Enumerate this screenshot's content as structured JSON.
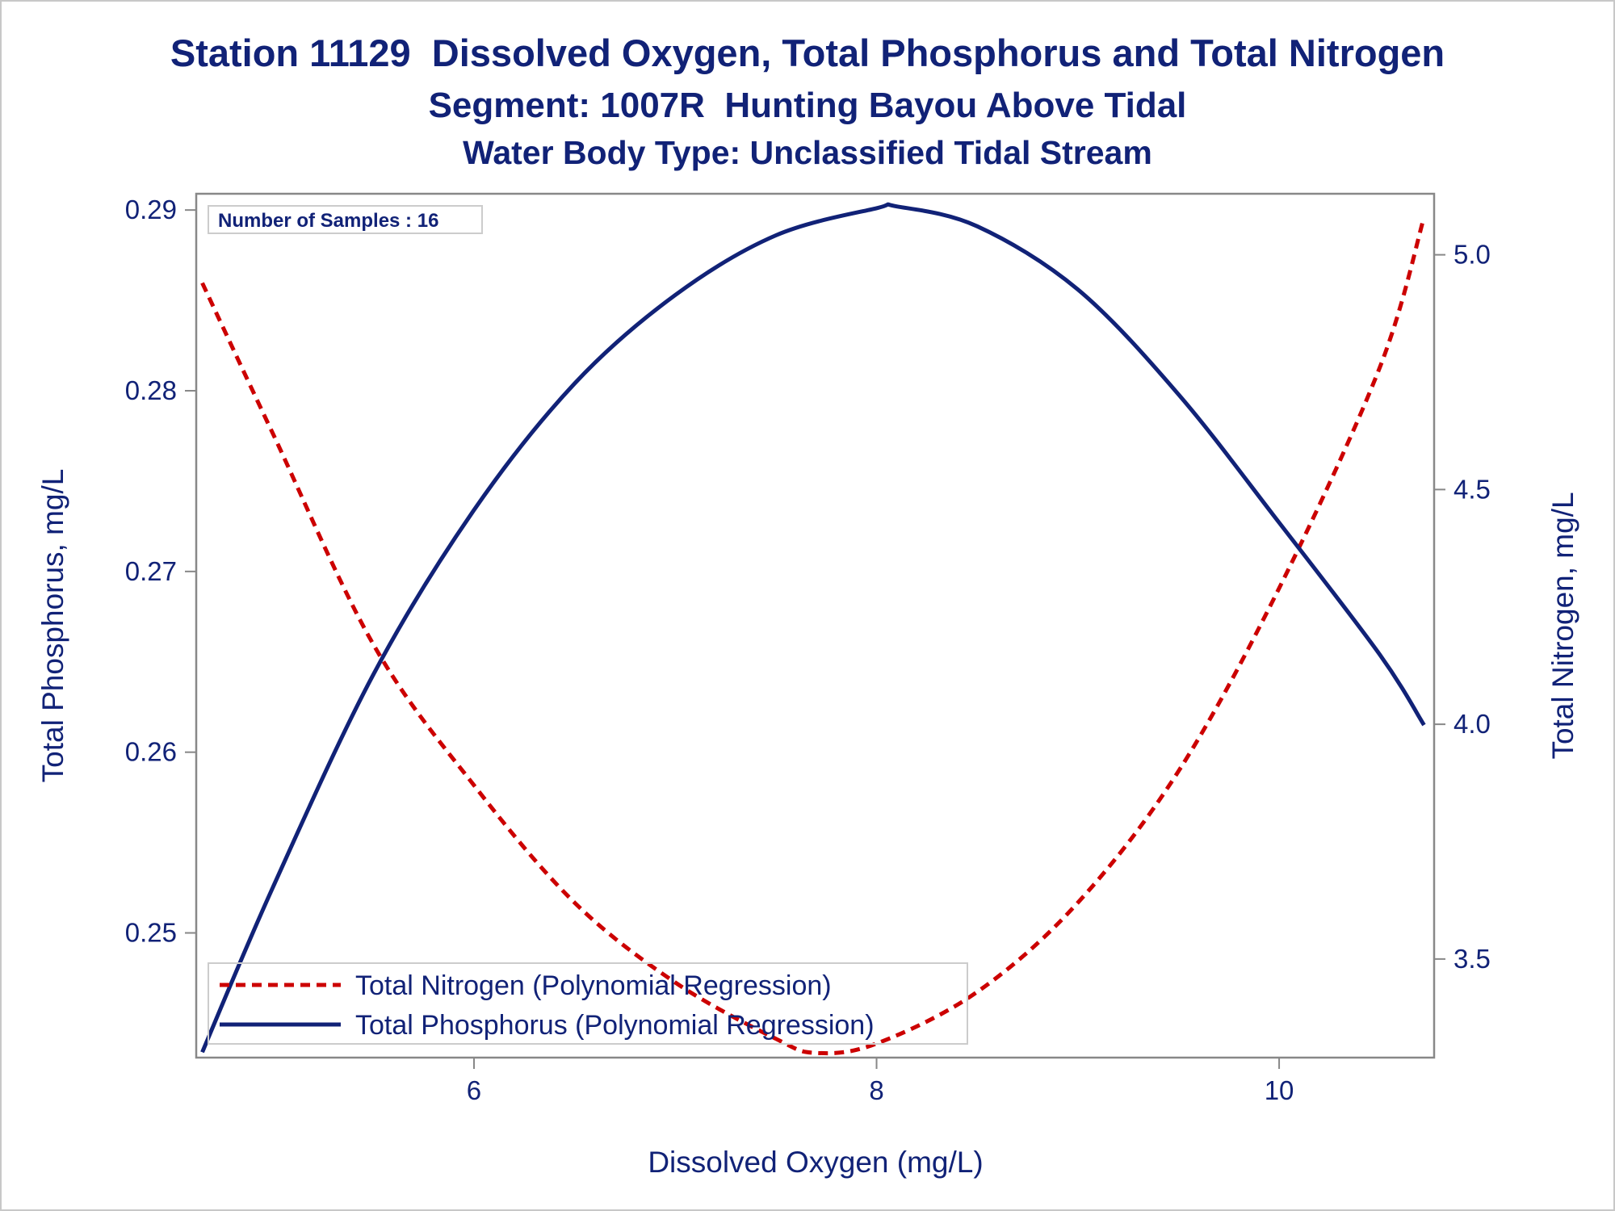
{
  "chart_data": {
    "type": "line",
    "title": "Station 11129  Dissolved Oxygen, Total Phosphorus and Total Nitrogen",
    "subtitle": "Segment: 1007R  Hunting Bayou Above Tidal",
    "subtitle2": "Water Body Type: Unclassified Tidal Stream",
    "xlabel": "Dissolved Oxygen (mg/L)",
    "ylabel_left": "Total Phosphorus, mg/L",
    "ylabel_right": "Total Nitrogen, mg/L",
    "xlim": [
      4.62,
      10.77
    ],
    "ylim_left": [
      0.2431,
      0.2909
    ],
    "ylim_right": [
      3.29,
      5.13
    ],
    "x_ticks": [
      6,
      8,
      10
    ],
    "x_tick_labels": [
      "6",
      "8",
      "10"
    ],
    "y_left_ticks": [
      0.25,
      0.26,
      0.27,
      0.28,
      0.29
    ],
    "y_left_tick_labels": [
      "0.25",
      "0.26",
      "0.27",
      "0.28",
      "0.29"
    ],
    "y_right_ticks": [
      3.5,
      4.0,
      4.5,
      5.0
    ],
    "y_right_tick_labels": [
      "3.5",
      "4.0",
      "4.5",
      "5.0"
    ],
    "inset_text": "Number of Samples : 16",
    "legend_position": "bottom-left",
    "series": [
      {
        "name": "Total Nitrogen (Polynomial Regression)",
        "axis": "right",
        "style": "dashed",
        "color": "#cc0000",
        "x": [
          4.65,
          5.0,
          5.5,
          6.0,
          6.5,
          7.0,
          7.5,
          7.7,
          8.0,
          8.5,
          9.0,
          9.5,
          10.0,
          10.5,
          10.72
        ],
        "y": [
          4.94,
          4.62,
          4.17,
          3.87,
          3.62,
          3.45,
          3.33,
          3.3,
          3.32,
          3.43,
          3.62,
          3.9,
          4.29,
          4.76,
          5.08
        ]
      },
      {
        "name": "Total Phosphorus (Polynomial Regression)",
        "axis": "left",
        "style": "solid",
        "color": "#112277",
        "x": [
          4.65,
          5.0,
          5.5,
          6.0,
          6.5,
          7.0,
          7.5,
          8.0,
          8.1,
          8.5,
          9.0,
          9.5,
          10.0,
          10.5,
          10.72
        ],
        "y": [
          0.2434,
          0.2525,
          0.2643,
          0.2734,
          0.2804,
          0.2853,
          0.2886,
          0.2901,
          0.2902,
          0.2891,
          0.2856,
          0.2798,
          0.2727,
          0.2654,
          0.2615
        ]
      }
    ]
  }
}
